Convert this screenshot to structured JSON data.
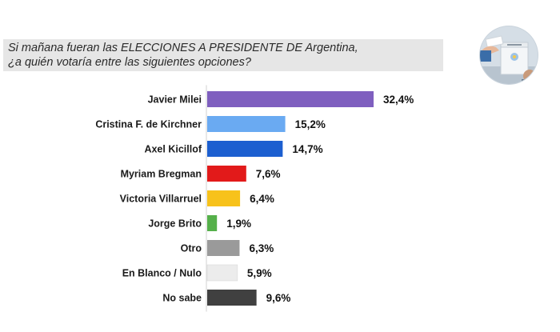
{
  "question": {
    "line1": "Si mañana fueran las ELECCIONES A PRESIDENTE DE Argentina,",
    "line2": "¿a quién votaría entre las siguientes opciones?"
  },
  "icons": {
    "badge": "ballot-box-icon"
  },
  "chart_data": {
    "type": "bar",
    "orientation": "horizontal",
    "categories": [
      "Javier Milei",
      "Cristina F. de Kirchner",
      "Axel Kicillof",
      "Myriam Bregman",
      "Victoria Villarruel",
      "Jorge Brito",
      "Otro",
      "En Blanco / Nulo",
      "No sabe"
    ],
    "values": [
      32.4,
      15.2,
      14.7,
      7.6,
      6.4,
      1.9,
      6.3,
      5.9,
      9.6
    ],
    "value_labels": [
      "32,4%",
      "15,2%",
      "14,7%",
      "7,6%",
      "6,4%",
      "1,9%",
      "6,3%",
      "5,9%",
      "9,6%"
    ],
    "colors": [
      "#7f5fbf",
      "#6aaaf2",
      "#1c5fd0",
      "#e21a1a",
      "#f7c21b",
      "#55b04a",
      "#9a9a9a",
      "#ececec",
      "#404040"
    ],
    "title": "",
    "xlabel": "",
    "ylabel": "",
    "xlim": [
      0,
      32.4
    ],
    "grid": false,
    "legend": "none",
    "axis_line_color": "#d0d0d0"
  }
}
